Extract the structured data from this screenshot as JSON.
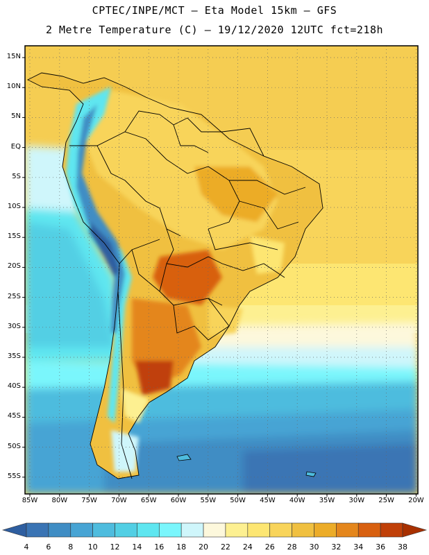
{
  "title_line1": "CPTEC/INPE/MCT –  Eta Model 15km – GFS",
  "title_line2": "2 Metre Temperature (C) – 19/12/2020 12UTC fct=218h",
  "lat_labels": [
    "15N",
    "10N",
    "5N",
    "EQ",
    "5S",
    "10S",
    "15S",
    "20S",
    "25S",
    "30S",
    "35S",
    "40S",
    "45S",
    "50S",
    "55S"
  ],
  "lon_labels": [
    "85W",
    "80W",
    "75W",
    "70W",
    "65W",
    "60W",
    "55W",
    "50W",
    "45W",
    "40W",
    "35W",
    "30W",
    "25W",
    "20W"
  ],
  "colorbar": {
    "labels": [
      "4",
      "6",
      "8",
      "10",
      "12",
      "14",
      "16",
      "18",
      "20",
      "22",
      "24",
      "26",
      "28",
      "30",
      "32",
      "34",
      "36",
      "38"
    ],
    "colors": [
      "#2e5ea0",
      "#3a74b4",
      "#3f8dc4",
      "#47a4d4",
      "#4ebcde",
      "#52cfe4",
      "#5ee6f0",
      "#7af6fc",
      "#cff6fb",
      "#fdf8dc",
      "#fdf091",
      "#fde672",
      "#f8d45a",
      "#f0c040",
      "#ecac28",
      "#e4861c",
      "#d86010",
      "#c04008",
      "#a83000"
    ]
  }
}
